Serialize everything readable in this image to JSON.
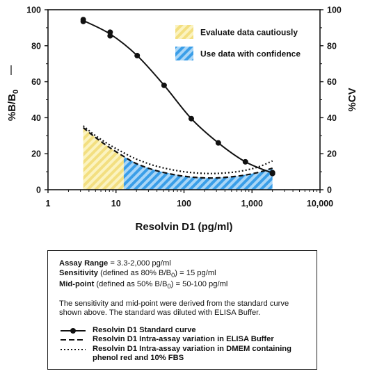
{
  "chart_data": {
    "type": "line",
    "xlabel": "Resolvin D1 (pg/ml)",
    "ylabel_left": "%B/B",
    "ylabel_left_sub": "0",
    "ylabel_right": "%CV",
    "xscale": "log",
    "xlim": [
      1,
      10000
    ],
    "ylim": [
      0,
      100
    ],
    "x_ticks": [
      {
        "value": 1,
        "label": "1"
      },
      {
        "value": 10,
        "label": "10"
      },
      {
        "value": 100,
        "label": "100"
      },
      {
        "value": 1000,
        "label": "1,000"
      },
      {
        "value": 10000,
        "label": "10,000"
      }
    ],
    "y_ticks": [
      0,
      20,
      40,
      60,
      80,
      100
    ],
    "y_tick_labels": [
      "0",
      "20",
      "40",
      "60",
      "80",
      "100"
    ],
    "regions": [
      {
        "name": "Evaluate data cautiously",
        "x_from": 3.3,
        "x_to": 13,
        "color": "#f5e38a"
      },
      {
        "name": "Use data with confidence",
        "x_from": 13,
        "x_to": 2000,
        "color": "#3a9ee8"
      }
    ],
    "series": [
      {
        "name": "Resolvin D1 Standard curve",
        "style": "solid-markers",
        "points": [
          [
            3.3,
            94.5
          ],
          [
            3.3,
            93.5
          ],
          [
            8.2,
            87.5
          ],
          [
            8.2,
            85.5
          ],
          [
            20.5,
            74.5
          ],
          [
            51,
            58
          ],
          [
            128,
            39.5
          ],
          [
            320,
            26
          ],
          [
            800,
            15.5
          ],
          [
            2000,
            9.5
          ],
          [
            2000,
            9
          ]
        ]
      },
      {
        "name": "Resolvin D1 Intra-assay variation in ELISA Buffer",
        "style": "dashed",
        "points": [
          [
            3.3,
            34.5
          ],
          [
            5,
            29
          ],
          [
            8,
            23.5
          ],
          [
            13,
            18.5
          ],
          [
            20,
            14.5
          ],
          [
            40,
            10.5
          ],
          [
            100,
            7.5
          ],
          [
            250,
            6.5
          ],
          [
            600,
            7.5
          ],
          [
            1200,
            9.5
          ],
          [
            2000,
            12
          ]
        ]
      },
      {
        "name": "Resolvin D1 Intra-assay variation in DMEM containing phenol red and 10% FBS",
        "style": "dotted",
        "points": [
          [
            3.3,
            35.5
          ],
          [
            5,
            30
          ],
          [
            8,
            25
          ],
          [
            13,
            20.5
          ],
          [
            20,
            17
          ],
          [
            40,
            13
          ],
          [
            100,
            10
          ],
          [
            250,
            9
          ],
          [
            600,
            10
          ],
          [
            1200,
            12.5
          ],
          [
            2000,
            16
          ]
        ]
      }
    ]
  },
  "info": {
    "range_label": "Assay Range",
    "range_text": " = 3.3-2,000 pg/ml",
    "sens_label": "Sensitivity",
    "sens_text1": " (defined as 80% B/B",
    "sens_sub": "0",
    "sens_text2": ") = 15 pg/ml",
    "mid_label": "Mid-point",
    "mid_text1": " (defined as 50% B/B",
    "mid_sub": "0",
    "mid_text2": ") = 50-100 pg/ml",
    "description": "The sensitivity and mid-point were derived from the standard curve shown above. The standard was diluted with ELISA Buffer.",
    "legend": [
      "Resolvin D1 Standard curve",
      "Resolvin D1 Intra-assay variation in ELISA Buffer",
      "Resolvin D1 Intra-assay variation in DMEM containing phenol red and 10% FBS"
    ]
  }
}
